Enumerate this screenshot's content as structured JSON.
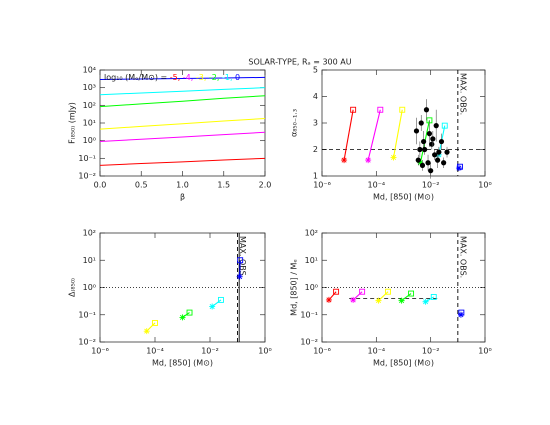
{
  "title": "SOLAR-TYPE, Rₐ = 300 AU",
  "chart_data": [
    {
      "type": "line",
      "xlabel": "β",
      "ylabel": "F₍₈₅₀₎ (mJy)",
      "ylog": true,
      "xlim": [
        0,
        2
      ],
      "xticks": [
        {
          "value": 0,
          "label": "0.0"
        },
        {
          "value": 0.5,
          "label": "0.5"
        },
        {
          "value": 1,
          "label": "1.0"
        },
        {
          "value": 1.5,
          "label": "1.5"
        },
        {
          "value": 2,
          "label": "2.0"
        }
      ],
      "ylim": [
        0.01,
        10000
      ],
      "yticks": [
        {
          "value": 0.01,
          "label": "10⁻²"
        },
        {
          "value": 0.1,
          "label": "10⁻¹"
        },
        {
          "value": 1,
          "label": "10⁰"
        },
        {
          "value": 10,
          "label": "10¹"
        },
        {
          "value": 100,
          "label": "10²"
        },
        {
          "value": 1000,
          "label": "10³"
        },
        {
          "value": 10000,
          "label": "10⁴"
        }
      ],
      "legend_title": "log₁₀ (Mₑ/M⊙) = ",
      "x": [
        0,
        0.5,
        1,
        1.5,
        2
      ],
      "series": [
        {
          "name": "-5, ",
          "color": "#ff0000",
          "values": [
            0.04,
            0.051,
            0.063,
            0.08,
            0.1
          ]
        },
        {
          "name": "-4, ",
          "color": "#ff00ff",
          "values": [
            0.9,
            1.2,
            1.6,
            2.2,
            3
          ]
        },
        {
          "name": "-3, ",
          "color": "#ffff00",
          "values": [
            4.5,
            6.4,
            9,
            13,
            18
          ]
        },
        {
          "name": "-2, ",
          "color": "#00ff00",
          "values": [
            85,
            120,
            170,
            250,
            350
          ]
        },
        {
          "name": "-1, ",
          "color": "#00ffff",
          "values": [
            400,
            500,
            630,
            800,
            1000
          ]
        },
        {
          "name": "0",
          "color": "#0000ff",
          "values": [
            2900,
            3100,
            3300,
            3550,
            3800
          ]
        }
      ]
    },
    {
      "type": "segments",
      "xlabel": "Md, [850] (M⊙)",
      "ylabel": "α₈₅₀₋₁.₃",
      "xlog": true,
      "xlim": [
        1e-06,
        1
      ],
      "xticks": [
        {
          "value": 1e-06,
          "label": "10⁻⁶"
        },
        {
          "value": 0.0001,
          "label": "10⁻⁴"
        },
        {
          "value": 0.01,
          "label": "10⁻²"
        },
        {
          "value": 1,
          "label": "10⁰"
        }
      ],
      "ylim": [
        1,
        5
      ],
      "yticks": [
        1,
        2,
        3,
        4,
        5
      ],
      "markers": [
        "star",
        "square"
      ],
      "series": [
        {
          "color": "#ff0000",
          "x": [
            6.5e-06,
            1.4e-05
          ],
          "values": [
            1.6,
            3.5
          ]
        },
        {
          "color": "#ff00ff",
          "x": [
            5e-05,
            0.00014
          ],
          "values": [
            1.6,
            3.5
          ]
        },
        {
          "color": "#ffff00",
          "x": [
            0.00043,
            0.0009
          ],
          "values": [
            1.7,
            3.5
          ]
        },
        {
          "color": "#00ff00",
          "x": [
            0.0042,
            0.009
          ],
          "values": [
            1.5,
            3.1
          ]
        },
        {
          "color": "#00ffff",
          "x": [
            0.02,
            0.033
          ],
          "values": [
            1.8,
            2.9
          ]
        },
        {
          "color": "#0000ff",
          "x": [
            0.11,
            0.12
          ],
          "values": [
            1.3,
            1.35
          ]
        }
      ],
      "points": {
        "color": "#000000",
        "x": [
          0.003,
          0.0035,
          0.004,
          0.0045,
          0.005,
          0.0055,
          0.006,
          0.007,
          0.008,
          0.009,
          0.01,
          0.011,
          0.012,
          0.014,
          0.016,
          0.018,
          0.02,
          0.025,
          0.03,
          0.04
        ],
        "values": [
          2.7,
          1.6,
          2.0,
          3.0,
          1.4,
          2.3,
          2.0,
          3.5,
          1.5,
          2.6,
          1.2,
          2.2,
          2.4,
          1.8,
          2.9,
          1.6,
          1.9,
          2.3,
          1.5,
          1.9
        ],
        "errors": [
          0.5,
          0.2,
          0.3,
          0.3,
          0.2,
          0.4,
          0.2,
          0.4,
          0.3,
          0.5,
          0.3,
          0.2,
          0.3,
          0.2,
          0.6,
          0.3,
          0.2,
          0.3,
          0.2,
          0.2
        ]
      },
      "hlines": [
        {
          "value": 2,
          "style": "dashed"
        }
      ],
      "vlines": [
        {
          "value": 0.1,
          "style": "dashed",
          "label": "MAX. OBS."
        }
      ]
    },
    {
      "type": "segments",
      "xlabel": "Md, [850] (M⊙)",
      "ylabel": "Δ₍₈₅₀₎",
      "xlog": true,
      "ylog": true,
      "xlim": [
        1e-06,
        1
      ],
      "xticks": [
        {
          "value": 1e-06,
          "label": "10⁻⁶"
        },
        {
          "value": 0.0001,
          "label": "10⁻⁴"
        },
        {
          "value": 0.01,
          "label": "10⁻²"
        },
        {
          "value": 1,
          "label": "10⁰"
        }
      ],
      "ylim": [
        0.01,
        100
      ],
      "yticks": [
        {
          "value": 0.01,
          "label": "10⁻²"
        },
        {
          "value": 0.1,
          "label": "10⁻¹"
        },
        {
          "value": 1,
          "label": "10⁰"
        },
        {
          "value": 10,
          "label": "10¹"
        },
        {
          "value": 100,
          "label": "10²"
        }
      ],
      "markers": [
        "star",
        "square"
      ],
      "series": [
        {
          "color": "#ffff00",
          "x": [
            5e-05,
            0.0001
          ],
          "values": [
            0.025,
            0.05
          ]
        },
        {
          "color": "#00ff00",
          "x": [
            0.001,
            0.0018
          ],
          "values": [
            0.08,
            0.12
          ]
        },
        {
          "color": "#00ffff",
          "x": [
            0.012,
            0.025
          ],
          "values": [
            0.2,
            0.35
          ]
        },
        {
          "color": "#0000ff",
          "x": [
            0.12,
            0.125
          ],
          "values": [
            2.5,
            10
          ]
        }
      ],
      "hlines": [
        {
          "value": 1,
          "style": "dotted"
        }
      ],
      "vlines": [
        {
          "value": 0.1,
          "style": "dashed",
          "label": "MAX. OBS."
        },
        {
          "value": 0.115,
          "style": "solid"
        }
      ]
    },
    {
      "type": "segments",
      "xlabel": "Md, [850] (M⊙)",
      "ylabel": "Md, [850] / Mₑ",
      "xlog": true,
      "ylog": true,
      "xlim": [
        1e-06,
        1
      ],
      "xticks": [
        {
          "value": 1e-06,
          "label": "10⁻⁶"
        },
        {
          "value": 0.0001,
          "label": "10⁻⁴"
        },
        {
          "value": 0.01,
          "label": "10⁻²"
        },
        {
          "value": 1,
          "label": "10⁰"
        }
      ],
      "ylim": [
        0.01,
        100
      ],
      "yticks": [
        {
          "value": 0.01,
          "label": "10⁻²"
        },
        {
          "value": 0.1,
          "label": "10⁻¹"
        },
        {
          "value": 1,
          "label": "10⁰"
        },
        {
          "value": 10,
          "label": "10¹"
        },
        {
          "value": 100,
          "label": "10²"
        }
      ],
      "markers": [
        "star",
        "square"
      ],
      "series": [
        {
          "color": "#ff0000",
          "x": [
            1.8e-06,
            3.3e-06
          ],
          "values": [
            0.35,
            0.7
          ]
        },
        {
          "color": "#ff00ff",
          "x": [
            1.4e-05,
            3e-05
          ],
          "values": [
            0.35,
            0.7
          ]
        },
        {
          "color": "#ffff00",
          "x": [
            0.00012,
            0.00027
          ],
          "values": [
            0.33,
            0.7
          ]
        },
        {
          "color": "#00ff00",
          "x": [
            0.00085,
            0.0019
          ],
          "values": [
            0.33,
            0.6
          ]
        },
        {
          "color": "#00ffff",
          "x": [
            0.0065,
            0.013
          ],
          "values": [
            0.3,
            0.45
          ]
        },
        {
          "color": "#0000ff",
          "x": [
            0.13,
            0.135
          ],
          "values": [
            0.1,
            0.12
          ]
        }
      ],
      "hlines": [
        {
          "value": 1,
          "style": "dotted"
        },
        {
          "value": 0.4,
          "style": "dashed",
          "from": 1e-05,
          "to": 0.02
        }
      ],
      "vlines": [
        {
          "value": 0.1,
          "style": "dashed",
          "label": "MAX. OBS."
        }
      ]
    }
  ]
}
